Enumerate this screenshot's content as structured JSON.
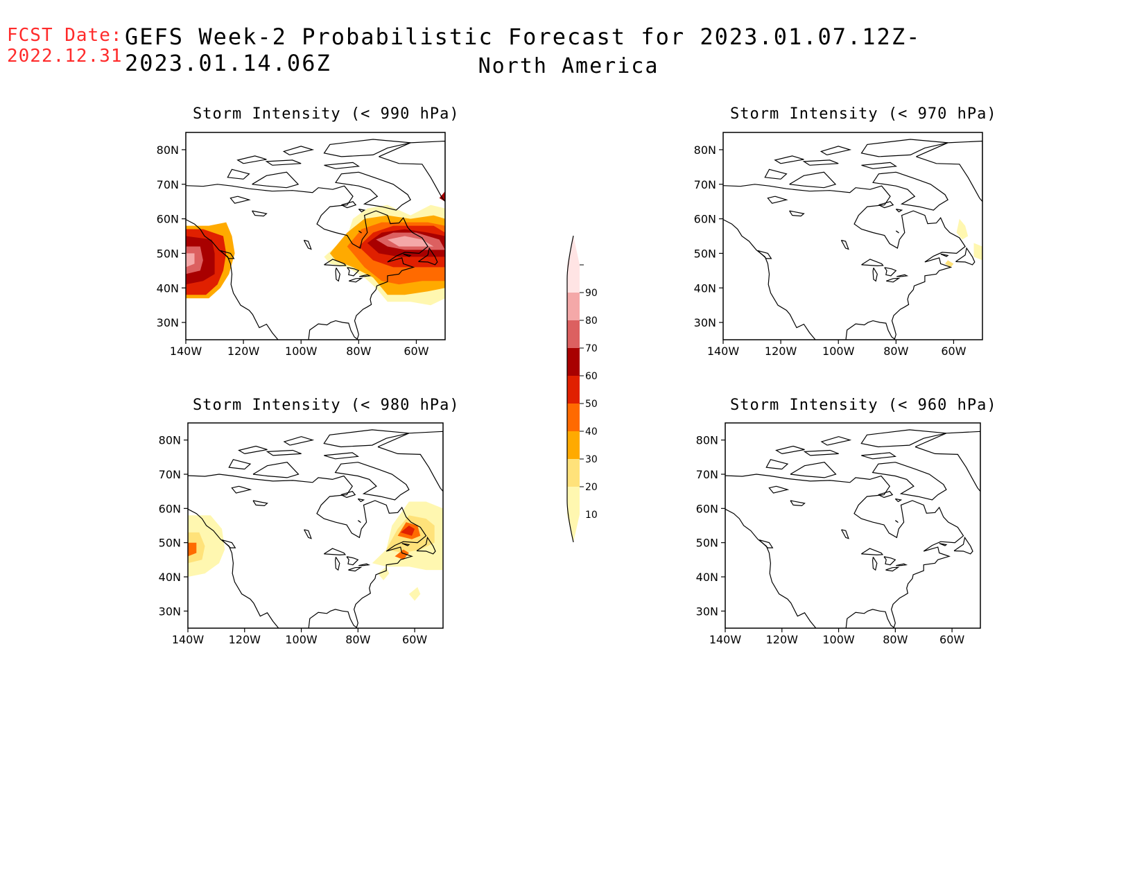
{
  "header": {
    "fcst_label": "FCST Date:",
    "fcst_date": "2022.12.31",
    "title": "GEFS Week-2 Probabilistic Forecast for 2023.01.07.12Z-2023.01.14.06Z",
    "subtitle": "North America"
  },
  "axes": {
    "lat_ticks": [
      "80N",
      "70N",
      "60N",
      "50N",
      "40N",
      "30N"
    ],
    "lon_ticks": [
      "140W",
      "120W",
      "100W",
      "80W",
      "60W"
    ]
  },
  "colorbar": {
    "levels": [
      "10",
      "20",
      "30",
      "40",
      "50",
      "60",
      "70",
      "80",
      "90"
    ],
    "colors": [
      "#fff7b0",
      "#ffe27a",
      "#ffaa00",
      "#ff6a00",
      "#e02000",
      "#a80000",
      "#dc6060",
      "#f4a8a8",
      "#ffe4e4"
    ]
  },
  "panels": [
    {
      "title": "Storm Intensity (< 990 hPa)"
    },
    {
      "title": "Storm Intensity (< 970 hPa)"
    },
    {
      "title": "Storm Intensity (< 980 hPa)"
    },
    {
      "title": "Storm Intensity (< 960 hPa)"
    }
  ]
}
